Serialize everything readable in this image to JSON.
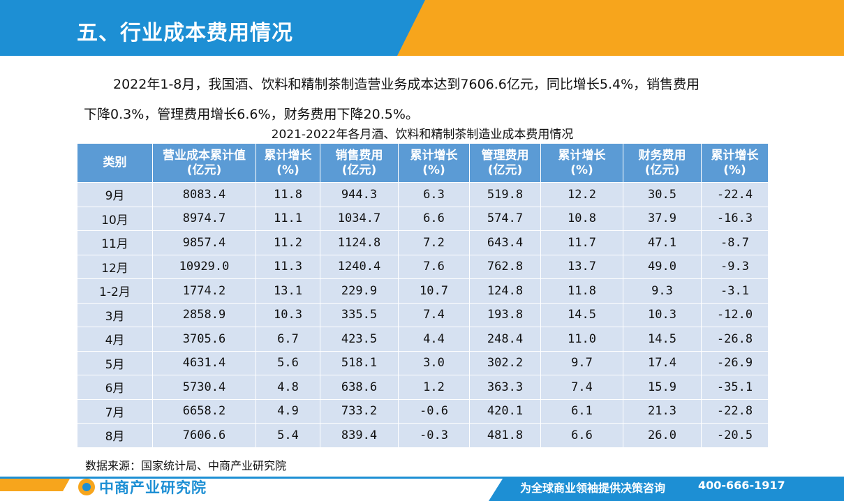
{
  "header": {
    "title": "五、行业成本费用情况"
  },
  "intro": {
    "line1": "2022年1-8月，我国酒、饮料和精制茶制造营业务成本达到7606.6亿元，同比增长5.4%，销售费用",
    "line2": "下降0.3%，管理费用增长6.6%，财务费用下降20.5%。"
  },
  "table": {
    "caption": "2021-2022年各月酒、饮料和精制茶制造业成本费用情况",
    "headers": [
      {
        "l1": "类别",
        "l2": ""
      },
      {
        "l1": "营业成本累计值",
        "l2": "(亿元)"
      },
      {
        "l1": "累计增长",
        "l2": "(%)"
      },
      {
        "l1": "销售费用",
        "l2": "(亿元)"
      },
      {
        "l1": "累计增长",
        "l2": "(%)"
      },
      {
        "l1": "管理费用",
        "l2": "(亿元)"
      },
      {
        "l1": "累计增长",
        "l2": "(%)"
      },
      {
        "l1": "财务费用",
        "l2": "(亿元)"
      },
      {
        "l1": "累计增长",
        "l2": "(%)"
      }
    ],
    "rows": [
      [
        "9月",
        "8083.4",
        "11.8",
        "944.3",
        "6.3",
        "519.8",
        "12.2",
        "30.5",
        "-22.4"
      ],
      [
        "10月",
        "8974.7",
        "11.1",
        "1034.7",
        "6.6",
        "574.7",
        "10.8",
        "37.9",
        "-16.3"
      ],
      [
        "11月",
        "9857.4",
        "11.2",
        "1124.8",
        "7.2",
        "643.4",
        "11.7",
        "47.1",
        "-8.7"
      ],
      [
        "12月",
        "10929.0",
        "11.3",
        "1240.4",
        "7.6",
        "762.8",
        "13.7",
        "49.0",
        "-9.3"
      ],
      [
        "1-2月",
        "1774.2",
        "13.1",
        "229.9",
        "10.7",
        "124.8",
        "11.8",
        "9.3",
        "-3.1"
      ],
      [
        "3月",
        "2858.9",
        "10.3",
        "335.5",
        "7.4",
        "193.8",
        "14.5",
        "10.3",
        "-12.0"
      ],
      [
        "4月",
        "3705.6",
        "6.7",
        "423.5",
        "4.4",
        "248.4",
        "11.0",
        "14.5",
        "-26.8"
      ],
      [
        "5月",
        "4631.4",
        "5.6",
        "518.1",
        "3.0",
        "302.2",
        "9.7",
        "17.4",
        "-26.9"
      ],
      [
        "6月",
        "5730.4",
        "4.8",
        "638.6",
        "1.2",
        "363.3",
        "7.4",
        "15.9",
        "-35.1"
      ],
      [
        "7月",
        "6658.2",
        "4.9",
        "733.2",
        "-0.6",
        "420.1",
        "6.1",
        "21.3",
        "-22.8"
      ],
      [
        "8月",
        "7606.6",
        "5.4",
        "839.4",
        "-0.3",
        "481.8",
        "6.6",
        "26.0",
        "-20.5"
      ]
    ]
  },
  "source": "数据来源：国家统计局、中商产业研究院",
  "footer": {
    "logo_text": "中商产业研究院",
    "slogan": "为全球商业领袖提供决策咨询",
    "phone": "400-666-1917"
  },
  "colors": {
    "brand_blue": "#1d8fd4",
    "brand_orange": "#f7a51c",
    "table_header": "#5b9bd5",
    "table_cell": "#d6e1f1"
  }
}
